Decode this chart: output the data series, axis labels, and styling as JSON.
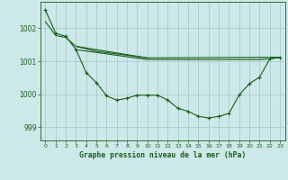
{
  "bg_color": "#cce8e8",
  "plot_bg_color": "#cce8e8",
  "grid_color": "#aacccc",
  "line_color": "#1a5c1a",
  "xlabel": "Graphe pression niveau de la mer (hPa)",
  "ylim": [
    998.6,
    1002.8
  ],
  "xlim": [
    -0.5,
    23.5
  ],
  "yticks": [
    999,
    1000,
    1001,
    1002
  ],
  "xticks": [
    0,
    1,
    2,
    3,
    4,
    5,
    6,
    7,
    8,
    9,
    10,
    11,
    12,
    13,
    14,
    15,
    16,
    17,
    18,
    19,
    20,
    21,
    22,
    23
  ],
  "series1_x": [
    0,
    1,
    2,
    3,
    4,
    5,
    6,
    7,
    8,
    9,
    10,
    11,
    12,
    13,
    14,
    15,
    16,
    17,
    18,
    19,
    20,
    21,
    22,
    23
  ],
  "series1_y": [
    1002.55,
    1001.85,
    1001.75,
    1001.35,
    1000.65,
    1000.35,
    999.95,
    999.82,
    999.88,
    999.97,
    999.97,
    999.97,
    999.82,
    999.57,
    999.48,
    999.33,
    999.28,
    999.33,
    999.42,
    999.98,
    1000.32,
    1000.52,
    1001.07,
    1001.12
  ],
  "series2_x": [
    3,
    10,
    11,
    12,
    13,
    14,
    15,
    16,
    17,
    18,
    19,
    20,
    21,
    22,
    23
  ],
  "series2_y": [
    1001.35,
    1001.05,
    1001.05,
    1001.05,
    1001.05,
    1001.05,
    1001.05,
    1001.05,
    1001.05,
    1001.05,
    1001.05,
    1001.05,
    1001.05,
    1001.07,
    1001.12
  ],
  "series3_x": [
    0,
    1,
    2,
    3,
    10,
    23
  ],
  "series3_y": [
    1002.2,
    1001.78,
    1001.72,
    1001.45,
    1001.1,
    1001.12
  ],
  "series4_x": [
    3,
    5,
    10
  ],
  "series4_y": [
    1001.45,
    1001.3,
    1001.1
  ]
}
